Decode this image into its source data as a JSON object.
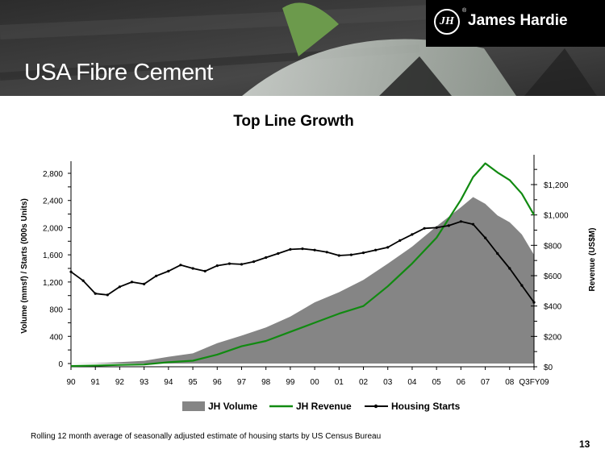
{
  "header": {
    "title": "USA Fibre Cement",
    "logo_text": "James Hardie",
    "logo_mark": "JH",
    "logo_reg": "®"
  },
  "footer": {
    "note": "Rolling 12 month average of seasonally adjusted estimate of housing starts by US Census Bureau",
    "page_number": "13"
  },
  "colors": {
    "volume_fill": "#858585",
    "revenue_line": "#118a11",
    "housing_line": "#000000",
    "banner": "#3a3a3a"
  },
  "chart_data": {
    "type": "line",
    "title": "Top Line Growth",
    "ylabel_left": "Volume (mmsf)  /  Starts (000s Units)",
    "ylabel_right": "Revenue (US$M)",
    "x_labels": [
      "90",
      "91",
      "92",
      "93",
      "94",
      "95",
      "96",
      "97",
      "98",
      "99",
      "00",
      "01",
      "02",
      "03",
      "04",
      "05",
      "06",
      "07",
      "08",
      "Q3FY09"
    ],
    "x_range": [
      1990.0,
      2009.0
    ],
    "left_axis": {
      "min": 0,
      "max": 2800,
      "ticks": [
        0,
        400,
        800,
        1200,
        1600,
        2000,
        2400,
        2800
      ],
      "tick_labels": [
        "0",
        "400",
        "800",
        "1,200",
        "1,600",
        "2,000",
        "2,400",
        "2,800"
      ]
    },
    "right_axis": {
      "min": 0,
      "max": 1200,
      "ticks": [
        0,
        200,
        400,
        600,
        800,
        1000,
        1200
      ],
      "tick_labels": [
        "$0",
        "$200",
        "$400",
        "$600",
        "$800",
        "$1,000",
        "$1,200"
      ]
    },
    "legend": {
      "position": "bottom",
      "items": [
        "JH Volume",
        "JH Revenue",
        "Housing Starts"
      ]
    },
    "series": [
      {
        "name": "JH Volume",
        "style": "area",
        "axis": "left",
        "x": [
          1990,
          1991,
          1992,
          1993,
          1994,
          1995,
          1996,
          1997,
          1998,
          1999,
          2000,
          2001,
          2002,
          2003,
          2004,
          2005,
          2006,
          2006.5,
          2007,
          2007.5,
          2008,
          2008.5,
          2009
        ],
        "y": [
          0,
          5,
          20,
          40,
          100,
          150,
          300,
          410,
          530,
          690,
          900,
          1050,
          1230,
          1470,
          1720,
          2020,
          2300,
          2450,
          2350,
          2180,
          2080,
          1900,
          1600
        ]
      },
      {
        "name": "JH Revenue",
        "style": "line",
        "axis": "right",
        "x": [
          1990,
          1991,
          1992,
          1993,
          1994,
          1995,
          1996,
          1997,
          1998,
          1999,
          2000,
          2001,
          2002,
          2003,
          2004,
          2005,
          2006,
          2006.5,
          2007,
          2007.5,
          2008,
          2008.5,
          2009
        ],
        "y": [
          5,
          8,
          12,
          15,
          30,
          40,
          80,
          135,
          170,
          230,
          290,
          350,
          400,
          530,
          680,
          850,
          1100,
          1250,
          1340,
          1280,
          1230,
          1140,
          1000
        ]
      },
      {
        "name": "Housing Starts",
        "style": "line-markers",
        "axis": "left",
        "x": [
          1990,
          1990.5,
          1991,
          1991.5,
          1992,
          1992.5,
          1993,
          1993.5,
          1994,
          1994.5,
          1995,
          1995.5,
          1996,
          1996.5,
          1997,
          1997.5,
          1998,
          1998.5,
          1999,
          1999.5,
          2000,
          2000.5,
          2001,
          2001.5,
          2002,
          2002.5,
          2003,
          2003.5,
          2004,
          2004.5,
          2005,
          2005.5,
          2006,
          2006.5,
          2007,
          2007.5,
          2008,
          2008.5,
          2009
        ],
        "y": [
          1350,
          1220,
          1030,
          1010,
          1130,
          1200,
          1170,
          1290,
          1360,
          1450,
          1400,
          1360,
          1440,
          1470,
          1460,
          1500,
          1560,
          1620,
          1680,
          1690,
          1670,
          1640,
          1590,
          1600,
          1630,
          1670,
          1710,
          1810,
          1900,
          1990,
          2000,
          2030,
          2090,
          2050,
          1850,
          1620,
          1400,
          1150,
          900
        ]
      }
    ]
  }
}
